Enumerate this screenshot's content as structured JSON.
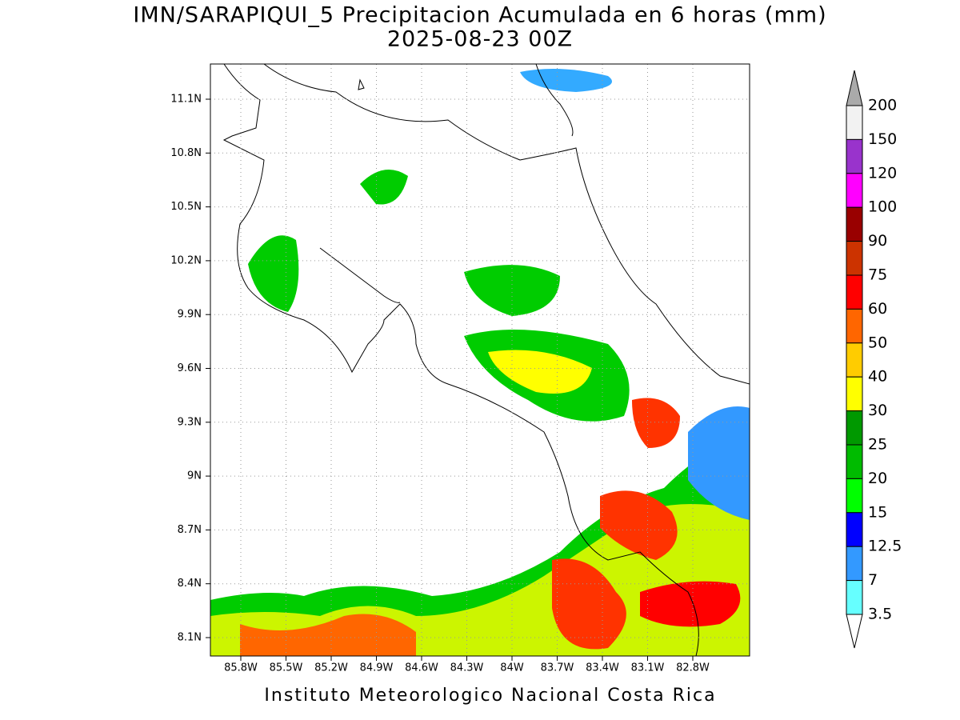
{
  "header": {
    "title": "IMN/SARAPIQUI_5 Precipitacion Acumulada en 6 horas (mm)",
    "subtitle": "2025-08-23 00Z"
  },
  "map": {
    "lon_labels": [
      "85.8W",
      "85.5W",
      "85.2W",
      "84.9W",
      "84.6W",
      "84.3W",
      "84W",
      "83.7W",
      "83.4W",
      "83.1W",
      "82.8W"
    ],
    "lat_labels": [
      "11.1N",
      "10.8N",
      "10.5N",
      "10.2N",
      "9.9N",
      "9.6N",
      "9.3N",
      "9N",
      "8.7N",
      "8.4N",
      "8.1N"
    ]
  },
  "colorbar": {
    "levels": [
      200,
      150,
      120,
      100,
      90,
      75,
      60,
      50,
      40,
      30,
      25,
      20,
      15,
      12.5,
      7,
      3.5
    ],
    "colors": [
      "#f2f2f2",
      "#9933cc",
      "#ff00ff",
      "#990000",
      "#cc3300",
      "#ff0000",
      "#ff6600",
      "#ffcc00",
      "#ffff00",
      "#009900",
      "#00bb00",
      "#00ff00",
      "#0000ff",
      "#3399ff",
      "#66ffff"
    ],
    "over_color": "#aaaaaa",
    "under_color": "#ffffff"
  },
  "footer": "Instituto Meteorologico Nacional Costa Rica"
}
